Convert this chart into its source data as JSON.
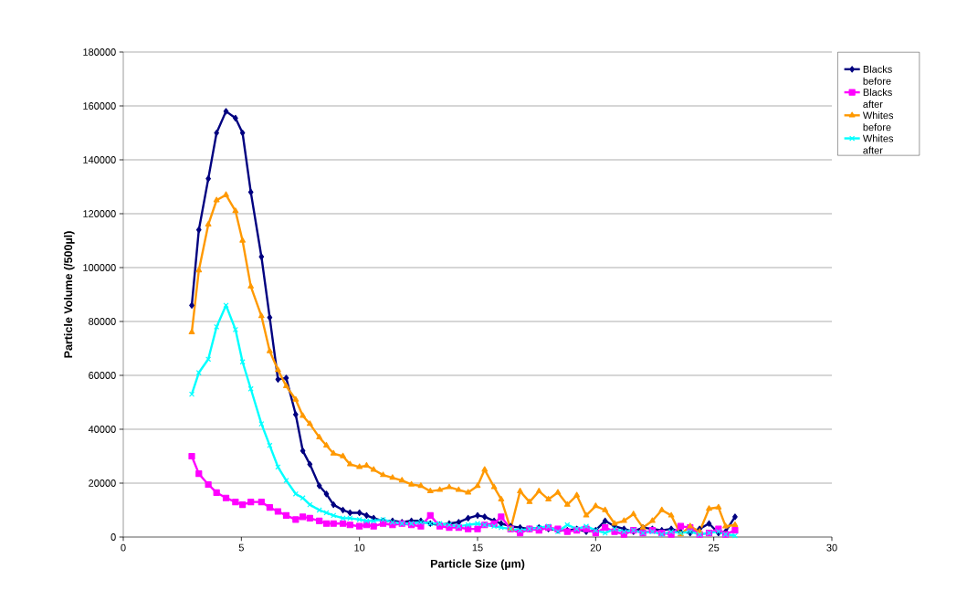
{
  "chart_data": {
    "type": "line",
    "xlabel": "Particle Size (µm)",
    "ylabel": "Particle Volume (/500µl)",
    "x": [
      2.9,
      3.2,
      3.6,
      3.95,
      4.35,
      4.75,
      5.05,
      5.4,
      5.85,
      6.2,
      6.55,
      6.9,
      7.3,
      7.6,
      7.9,
      8.3,
      8.6,
      8.9,
      9.3,
      9.6,
      10.0,
      10.3,
      10.6,
      11.0,
      11.4,
      11.8,
      12.2,
      12.6,
      13.0,
      13.4,
      13.8,
      14.2,
      14.6,
      15.0,
      15.3,
      15.7,
      16.0,
      16.4,
      16.8,
      17.2,
      17.6,
      18.0,
      18.4,
      18.8,
      19.2,
      19.6,
      20.0,
      20.4,
      20.8,
      21.2,
      21.6,
      22.0,
      22.4,
      22.8,
      23.2,
      23.6,
      24.0,
      24.4,
      24.8,
      25.2,
      25.5,
      25.9
    ],
    "series": [
      {
        "name": "Blacks before",
        "color": "#000080",
        "marker": "diamond",
        "values": [
          86000,
          114000,
          133000,
          150000,
          158000,
          155500,
          150000,
          128000,
          104000,
          81500,
          58500,
          59000,
          45500,
          32000,
          27000,
          19000,
          16000,
          12000,
          10000,
          9000,
          9000,
          8000,
          7000,
          6000,
          6000,
          5500,
          6000,
          6000,
          5000,
          4500,
          5000,
          5500,
          7000,
          8000,
          7500,
          6000,
          5000,
          4000,
          3500,
          3000,
          3500,
          3000,
          2500,
          2500,
          3000,
          2000,
          2500,
          6000,
          4000,
          3000,
          2000,
          3500,
          3000,
          2500,
          3000,
          2000,
          1500,
          3000,
          5000,
          1500,
          2000,
          7500
        ]
      },
      {
        "name": "Blacks after",
        "color": "#ff00ff",
        "marker": "square",
        "values": [
          30000,
          23500,
          19500,
          16500,
          14500,
          13000,
          12000,
          13000,
          13000,
          11000,
          9500,
          8000,
          6500,
          7500,
          7000,
          6000,
          5000,
          5000,
          5000,
          4500,
          4000,
          4500,
          4000,
          5000,
          4500,
          5000,
          4500,
          4000,
          8000,
          4000,
          3500,
          3500,
          3000,
          3000,
          4500,
          5000,
          7500,
          3000,
          1500,
          3000,
          2500,
          3500,
          3000,
          2000,
          2500,
          3000,
          1500,
          3500,
          2000,
          1000,
          2500,
          1500,
          2500,
          1500,
          1000,
          4000,
          3500,
          1000,
          1500,
          3000,
          1000,
          2500
        ]
      },
      {
        "name": "Whites before",
        "color": "#ff9900",
        "marker": "triangle",
        "values": [
          76000,
          99000,
          116000,
          125000,
          127000,
          121000,
          110000,
          93000,
          82000,
          69000,
          62000,
          56000,
          51000,
          45000,
          42000,
          37000,
          34000,
          31000,
          30000,
          27000,
          26000,
          26500,
          25000,
          23000,
          22000,
          21000,
          19500,
          19000,
          17000,
          17500,
          18500,
          17500,
          16500,
          19000,
          25000,
          18500,
          14000,
          3000,
          17000,
          13000,
          17000,
          14000,
          16500,
          12000,
          15500,
          8000,
          11500,
          10000,
          5000,
          6000,
          8500,
          3500,
          6000,
          10000,
          8000,
          1000,
          4000,
          2000,
          10500,
          11000,
          4000,
          4500
        ]
      },
      {
        "name": "Whites after",
        "color": "#00ffff",
        "marker": "cross",
        "values": [
          53000,
          61000,
          66000,
          78000,
          86000,
          77000,
          65000,
          55000,
          42000,
          34000,
          26000,
          21000,
          16000,
          14500,
          12000,
          10000,
          9000,
          8000,
          7000,
          7000,
          6500,
          6000,
          6000,
          6500,
          5500,
          5000,
          5000,
          5500,
          5000,
          5000,
          4500,
          4000,
          4500,
          5000,
          4500,
          4000,
          3500,
          3000,
          2500,
          3000,
          3500,
          4000,
          2000,
          4500,
          3000,
          4000,
          2500,
          1500,
          3000,
          2000,
          2500,
          1500,
          2000,
          1000,
          2000,
          1500,
          2000,
          1000,
          1500,
          2000,
          1000,
          500
        ]
      }
    ],
    "xlim": [
      0,
      30
    ],
    "xticks": [
      0,
      5,
      10,
      15,
      20,
      25,
      30
    ],
    "ylim": [
      0,
      180000
    ],
    "yticks": [
      0,
      20000,
      40000,
      60000,
      80000,
      100000,
      120000,
      140000,
      160000,
      180000
    ],
    "grid": "y",
    "legend": "top right"
  }
}
